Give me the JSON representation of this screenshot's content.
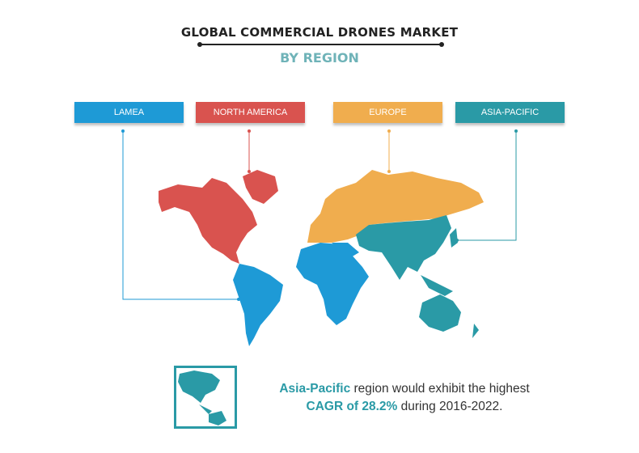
{
  "header": {
    "title": "GLOBAL COMMERCIAL DRONES MARKET",
    "subtitle": "BY REGION"
  },
  "regions": [
    {
      "label": "LAMEA",
      "color": "#1e9ad6"
    },
    {
      "label": "NORTH AMERICA",
      "color": "#d9534f"
    },
    {
      "label": "EUROPE",
      "color": "#f0ad4e"
    },
    {
      "label": "ASIA-PACIFIC",
      "color": "#2a9aa6"
    }
  ],
  "note": {
    "highlight1": "Asia-Pacific",
    "text1": " region would exhibit the highest",
    "highlight2": "CAGR of 28.2%",
    "text2": " during 2016-2022."
  }
}
